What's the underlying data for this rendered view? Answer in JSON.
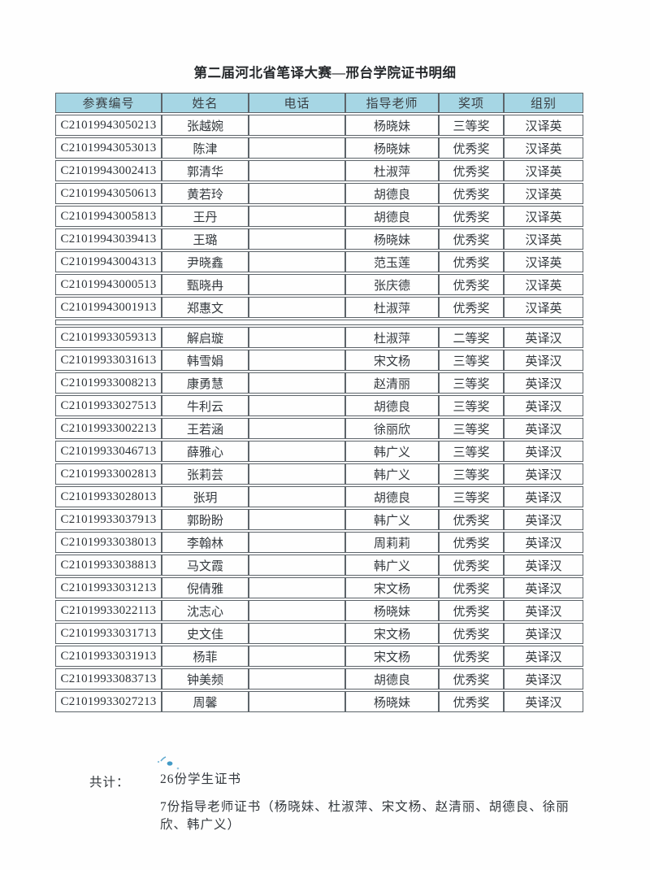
{
  "page": {
    "title": "第二届河北省笔译大赛—邢台学院证书明细"
  },
  "table": {
    "headers": [
      "参赛编号",
      "姓名",
      "电话",
      "指导老师",
      "奖项",
      "组别"
    ],
    "sections": [
      {
        "rows": [
          [
            "C21019943050213",
            "张越婉",
            "",
            "杨晓妹",
            "三等奖",
            "汉译英"
          ],
          [
            "C21019943053013",
            "陈津",
            "",
            "杨晓妹",
            "优秀奖",
            "汉译英"
          ],
          [
            "C21019943002413",
            "郭清华",
            "",
            "杜淑萍",
            "优秀奖",
            "汉译英"
          ],
          [
            "C21019943050613",
            "黄若玲",
            "",
            "胡德良",
            "优秀奖",
            "汉译英"
          ],
          [
            "C21019943005813",
            "王丹",
            "",
            "胡德良",
            "优秀奖",
            "汉译英"
          ],
          [
            "C21019943039413",
            "王璐",
            "",
            "杨晓妹",
            "优秀奖",
            "汉译英"
          ],
          [
            "C21019943004313",
            "尹晓鑫",
            "",
            "范玉莲",
            "优秀奖",
            "汉译英"
          ],
          [
            "C21019943000513",
            "甄晓冉",
            "",
            "张庆德",
            "优秀奖",
            "汉译英"
          ],
          [
            "C21019943001913",
            "郑惠文",
            "",
            "杜淑萍",
            "优秀奖",
            "汉译英"
          ]
        ]
      },
      {
        "rows": [
          [
            "C21019933059313",
            "解启璇",
            "",
            "杜淑萍",
            "二等奖",
            "英译汉"
          ],
          [
            "C21019933031613",
            "韩雪娟",
            "",
            "宋文杨",
            "三等奖",
            "英译汉"
          ],
          [
            "C21019933008213",
            "康勇慧",
            "",
            "赵清丽",
            "三等奖",
            "英译汉"
          ],
          [
            "C21019933027513",
            "牛利云",
            "",
            "胡德良",
            "三等奖",
            "英译汉"
          ],
          [
            "C21019933002213",
            "王若涵",
            "",
            "徐丽欣",
            "三等奖",
            "英译汉"
          ],
          [
            "C21019933046713",
            "薛雅心",
            "",
            "韩广义",
            "三等奖",
            "英译汉"
          ],
          [
            "C21019933002813",
            "张莉芸",
            "",
            "韩广义",
            "三等奖",
            "英译汉"
          ],
          [
            "C21019933028013",
            "张玥",
            "",
            "胡德良",
            "三等奖",
            "英译汉"
          ],
          [
            "C21019933037913",
            "郭盼盼",
            "",
            "韩广义",
            "优秀奖",
            "英译汉"
          ],
          [
            "C21019933038013",
            "李翰林",
            "",
            "周莉莉",
            "优秀奖",
            "英译汉"
          ],
          [
            "C21019933038813",
            "马文霞",
            "",
            "韩广义",
            "优秀奖",
            "英译汉"
          ],
          [
            "C21019933031213",
            "倪倩雅",
            "",
            "宋文杨",
            "优秀奖",
            "英译汉"
          ],
          [
            "C21019933022113",
            "沈志心",
            "",
            "杨晓妹",
            "优秀奖",
            "英译汉"
          ],
          [
            "C21019933031713",
            "史文佳",
            "",
            "宋文杨",
            "优秀奖",
            "英译汉"
          ],
          [
            "C21019933031913",
            "杨菲",
            "",
            "宋文杨",
            "优秀奖",
            "英译汉"
          ],
          [
            "C21019933083713",
            "钟美频",
            "",
            "胡德良",
            "优秀奖",
            "英译汉"
          ],
          [
            "C21019933027213",
            "周馨",
            "",
            "杨晓妹",
            "优秀奖",
            "英译汉"
          ]
        ]
      }
    ]
  },
  "summary": {
    "total_label": "共计：",
    "students_line": "26份学生证书",
    "teachers_line": "7份指导老师证书（杨晓妹、杜淑萍、宋文杨、赵清丽、胡德良、徐丽欣、韩广义）"
  },
  "colors": {
    "header_bg": "#a6d6e4",
    "border": "#5d646a",
    "text": "#33383d",
    "ink_mark": "#2f8fc0"
  }
}
